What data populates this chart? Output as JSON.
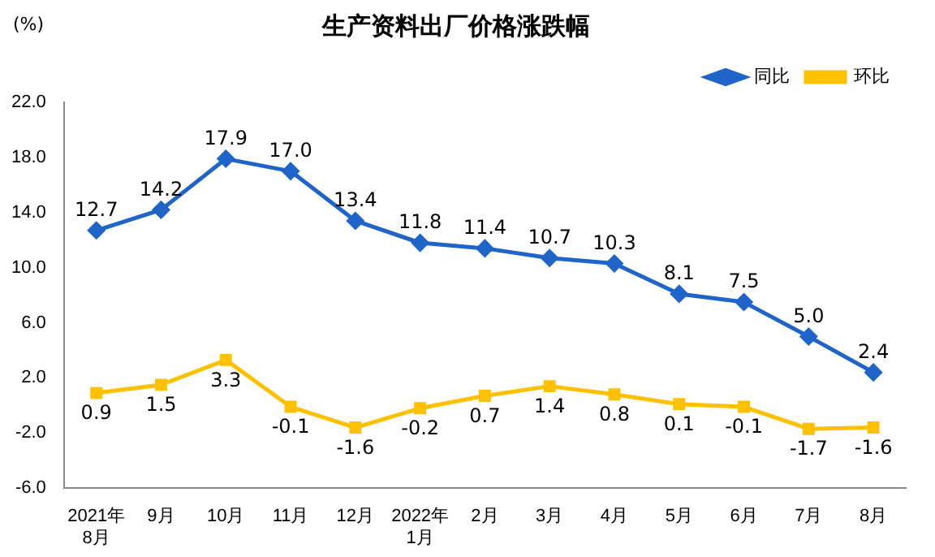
{
  "chart_data": {
    "type": "line",
    "title": "生产资料出厂价格涨跌幅",
    "ylabel": "(%)",
    "categories": [
      "2021年\n8月",
      "9月",
      "10月",
      "11月",
      "12月",
      "2022年\n1月",
      "2月",
      "3月",
      "4月",
      "5月",
      "6月",
      "7月",
      "8月"
    ],
    "series": [
      {
        "name": "同比",
        "color": "#1f64c8",
        "marker": "diamond",
        "values": [
          12.7,
          14.2,
          17.9,
          17.0,
          13.4,
          11.8,
          11.4,
          10.7,
          10.3,
          8.1,
          7.5,
          5.0,
          2.4
        ],
        "value_labels": [
          "12.7",
          "14.2",
          "17.9",
          "17.0",
          "13.4",
          "11.8",
          "11.4",
          "10.7",
          "10.3",
          "8.1",
          "7.5",
          "5.0",
          "2.4"
        ]
      },
      {
        "name": "环比",
        "color": "#ffc000",
        "marker": "square",
        "values": [
          0.9,
          1.5,
          3.3,
          -0.1,
          -1.6,
          -0.2,
          0.7,
          1.4,
          0.8,
          0.1,
          -0.1,
          -1.7,
          -1.6
        ],
        "value_labels": [
          "0.9",
          "1.5",
          "3.3",
          "-0.1",
          "-1.6",
          "-0.2",
          "0.7",
          "1.4",
          "0.8",
          "0.1",
          "-0.1",
          "-1.7",
          "-1.6"
        ]
      }
    ],
    "ylim": [
      -6,
      22
    ],
    "yticks": [
      {
        "value": -6,
        "label": "-6.0"
      },
      {
        "value": -2,
        "label": "-2.0"
      },
      {
        "value": 2,
        "label": "2.0"
      },
      {
        "value": 6,
        "label": "6.0"
      },
      {
        "value": 10,
        "label": "10.0"
      },
      {
        "value": 14,
        "label": "14.0"
      },
      {
        "value": 18,
        "label": "18.0"
      },
      {
        "value": 22,
        "label": "22.0"
      }
    ],
    "grid": false,
    "legend": "top right",
    "line_style": "solid"
  }
}
